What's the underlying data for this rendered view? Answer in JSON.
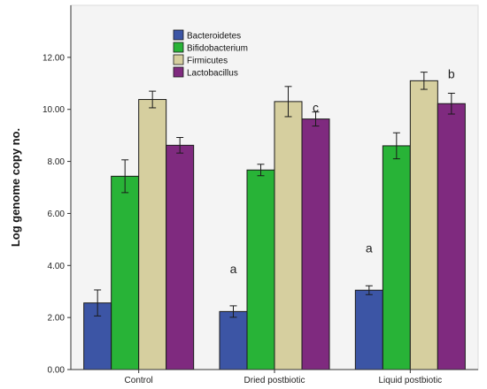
{
  "chart_data": {
    "type": "bar",
    "title": "",
    "xlabel": "",
    "ylabel": "Log genome copy no.",
    "ylim": [
      0,
      14
    ],
    "yticks": [
      "0.00",
      "2.00",
      "4.00",
      "6.00",
      "8.00",
      "10.00",
      "12.00"
    ],
    "ytick_values": [
      0,
      2,
      4,
      6,
      8,
      10,
      12
    ],
    "grid": false,
    "legend_position": "top-center",
    "categories": [
      "Control",
      "Dried postbiotic",
      "Liquid postbiotic"
    ],
    "series": [
      {
        "name": "Bacteroidetes",
        "color": "#3c55a5",
        "values": [
          2.56,
          2.23,
          3.05
        ],
        "error": [
          0.5,
          0.22,
          0.17
        ]
      },
      {
        "name": "Bifidobacterium",
        "color": "#28b337",
        "values": [
          7.43,
          7.67,
          8.6
        ],
        "error": [
          0.63,
          0.22,
          0.5
        ]
      },
      {
        "name": "Firmicutes",
        "color": "#d6cf9f",
        "values": [
          10.38,
          10.3,
          11.1
        ],
        "error": [
          0.32,
          0.58,
          0.33
        ]
      },
      {
        "name": "Lactobacillus",
        "color": "#7f2a7f",
        "values": [
          8.62,
          9.63,
          10.22
        ],
        "error": [
          0.3,
          0.27,
          0.4
        ]
      }
    ],
    "annotations": [
      {
        "text": "a",
        "category": 1,
        "series": 0,
        "y": 3.7
      },
      {
        "text": "c",
        "category": 1,
        "series": 3,
        "y": 9.9
      },
      {
        "text": "a",
        "category": 2,
        "series": 0,
        "y": 4.5
      },
      {
        "text": "b",
        "category": 2,
        "series": 3,
        "y": 11.2
      }
    ]
  }
}
